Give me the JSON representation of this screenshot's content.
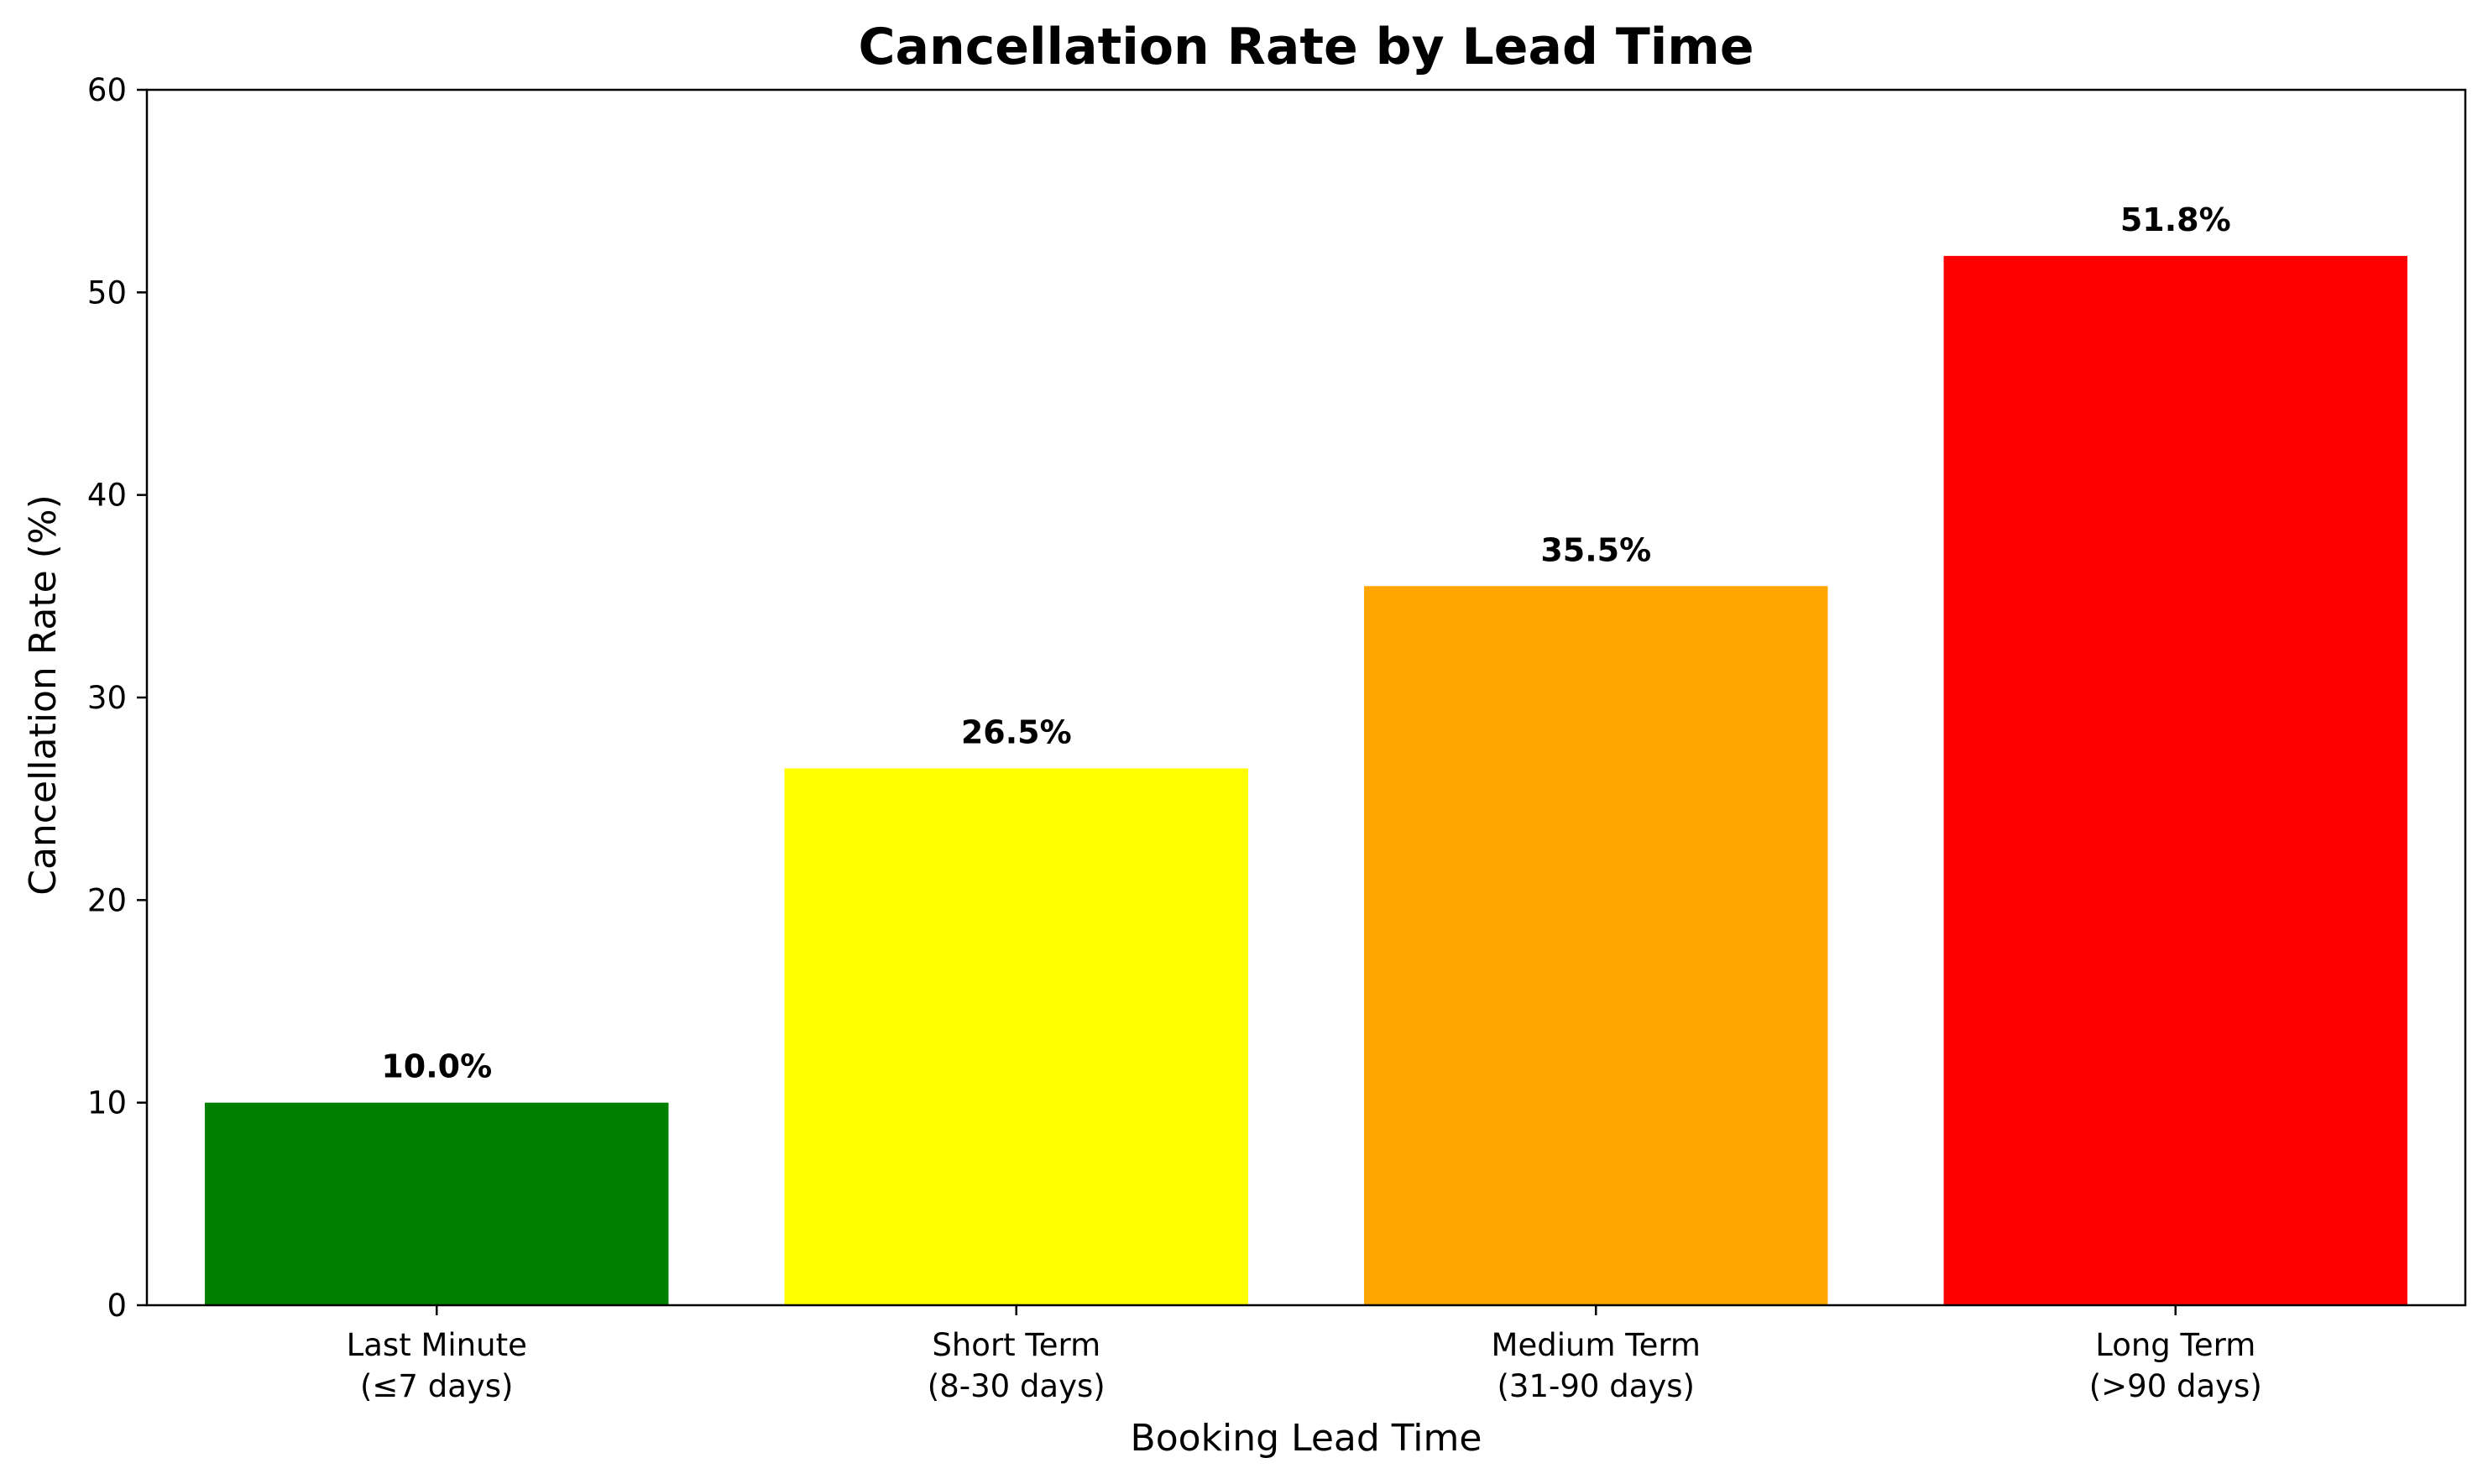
{
  "chart_data": {
    "type": "bar",
    "title": "Cancellation Rate by Lead Time",
    "xlabel": "Booking Lead Time",
    "ylabel": "Cancellation Rate (%)",
    "ylim": [
      0,
      60
    ],
    "yticks": [
      0,
      10,
      20,
      30,
      40,
      50,
      60
    ],
    "grid": false,
    "categories": [
      [
        "Last Minute",
        "(≤7 days)"
      ],
      [
        "Short Term",
        "(8-30 days)"
      ],
      [
        "Medium Term",
        "(31-90 days)"
      ],
      [
        "Long Term",
        "(>90 days)"
      ]
    ],
    "values": [
      10.0,
      26.5,
      35.5,
      51.8
    ],
    "data_labels": [
      "10.0%",
      "26.5%",
      "35.5%",
      "51.8%"
    ],
    "colors": [
      "#008000",
      "#ffff00",
      "#ffa500",
      "#ff0000"
    ]
  }
}
